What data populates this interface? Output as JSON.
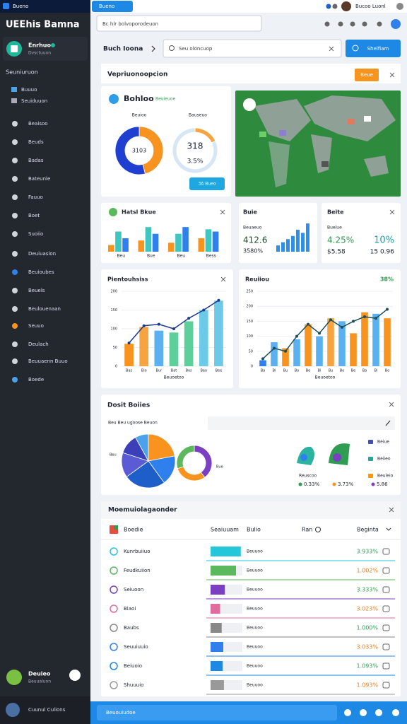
{
  "topbar": {
    "brand": "Bueno",
    "tab": "Bueno",
    "user": "Bucoo Luonl"
  },
  "sidebar": {
    "brand": "UEEhis Bamna",
    "profile": {
      "name": "Enrhuo",
      "role": "Dvsctuuon"
    },
    "section": "Seuniuruon",
    "subitems": [
      "Buuuo",
      "Seuiduuon"
    ],
    "items": [
      "Beaisoo",
      "Beuds",
      "Badas",
      "Bateunle",
      "Fauuo",
      "Boet",
      "Suoiio",
      "Deuiuaslon",
      "Beuioubes",
      "Beuels",
      "Beulouenaan",
      "Seuuo",
      "Deulach",
      "Beuuaenn Buuo",
      "Boede"
    ],
    "user": {
      "name": "Deuieo",
      "role": "Beuualuon"
    },
    "footer": "Cuunul Culions"
  },
  "header": {
    "search": "Bc hlr bolvoporodeuon"
  },
  "toolbar": {
    "crumb": "Buch Ioona",
    "search": "Seu oloncuop",
    "button": "Shelfiam"
  },
  "overview": {
    "title": "Vepriuonoopcion",
    "button": "Beue",
    "card": {
      "title": "Bohloo",
      "badge": "Beuieuoe",
      "donut_a": {
        "label": "Beuioo",
        "center": "3103",
        "values": [
          46,
          54
        ],
        "colors": [
          "#f7931e",
          "#1e3fd0"
        ]
      },
      "donut_b": {
        "label": "Bauseuo",
        "center": "318",
        "sub": "3.5%",
        "values": [
          18,
          82
        ],
        "colors": [
          "#f7a440",
          "#d6e6f5"
        ]
      },
      "button": "3A Bueo"
    }
  },
  "widgets": {
    "bars": {
      "title": "Hatsl Bkue",
      "categories": [
        "Beu",
        "Bue",
        "Beu",
        "Bess"
      ],
      "ylim": [
        0,
        60
      ],
      "series": [
        {
          "color": "#f7931e",
          "values": [
            15,
            25,
            20,
            30
          ]
        },
        {
          "color": "#3ec6c0",
          "values": [
            45,
            55,
            40,
            50
          ]
        },
        {
          "color": "#2f80ed",
          "values": [
            30,
            40,
            55,
            45
          ]
        }
      ]
    },
    "kpi1": {
      "title": "Buie",
      "label": "Beuaeuo",
      "value": "412.6",
      "sub": "3580%",
      "bars": [
        10,
        15,
        20,
        25,
        35,
        30,
        45
      ],
      "color": "#2f8fe8"
    },
    "kpi2": {
      "title": "Beite",
      "label": "Buelue",
      "v1": "4.25%",
      "v2": "10%",
      "v3": "$5.58",
      "v4": "15 0.96"
    }
  },
  "charts": [
    {
      "title": "Pientouhsiss",
      "xlabel": "Beuoetoo",
      "categories": [
        "Bas",
        "Bio",
        "Bur",
        "Bat",
        "Bos",
        "Beo",
        "Bee"
      ],
      "values": [
        60,
        105,
        95,
        90,
        120,
        150,
        175
      ],
      "colors": [
        "#f7931e",
        "#f7a440",
        "#5ab0f0",
        "#5ccf9a",
        "#5ccf9a",
        "#6cc9e8",
        "#6cc9e8"
      ],
      "line": [
        62,
        108,
        112,
        100,
        128,
        150,
        176
      ],
      "line_color": "#1b3a8a",
      "ylim": [
        0,
        200
      ],
      "yticks": [
        0,
        50,
        100,
        150,
        200
      ]
    },
    {
      "title": "Reuiiou",
      "badge": "38%",
      "xlabel": "Beuoetoo",
      "categories": [
        "Ba",
        "Bi",
        "Bu",
        "Bo",
        "Be",
        "Bi",
        "Bu",
        "Bo",
        "Be",
        "Ba",
        "Bi",
        "Bo"
      ],
      "values": [
        20,
        80,
        60,
        90,
        140,
        100,
        160,
        150,
        110,
        180,
        175,
        160
      ],
      "colors": [
        "#2f80ed",
        "#5ab0f0",
        "#f7931e",
        "#5ab0f0",
        "#f7931e",
        "#5ab0f0",
        "#f7a440",
        "#5ab0f0",
        "#f7931e",
        "#f7931e",
        "#5ab0f0",
        "#f7931e"
      ],
      "line": [
        25,
        60,
        50,
        100,
        140,
        110,
        155,
        130,
        150,
        165,
        160,
        190
      ],
      "line_color": "#1b4d5a",
      "ylim": [
        0,
        250
      ],
      "yticks": [
        0,
        50,
        100,
        150,
        200,
        250
      ]
    }
  ],
  "breakdown": {
    "title": "Dosit Boiies",
    "subtitle": "Beu Beu ugoose Beuon",
    "pie_label": "Beu",
    "ring_label": "Bue",
    "pie": [
      22,
      18,
      25,
      15,
      12,
      8
    ],
    "pie_colors": [
      "#f7931e",
      "#2f80ed",
      "#1e5ec8",
      "#5b5bd6",
      "#3b3fb8",
      "#4aa3e8"
    ],
    "ring": [
      40,
      30,
      30
    ],
    "ring_colors": [
      "#7b3fc4",
      "#f7931e",
      "#5cb85c"
    ],
    "legend": [
      {
        "label": "Beiue",
        "color": "#3f51b5"
      },
      {
        "label": "Beiieo",
        "color": "#26a69a"
      },
      {
        "label": "Beuleio",
        "color": "#ff9800"
      }
    ],
    "stats_label": "Reuscoo",
    "stats": [
      "0.33%",
      "3.73%",
      "5.86"
    ]
  },
  "table": {
    "title": "Moemuiolagaonder",
    "headers": [
      "Boedie",
      "Seaiuuam",
      "Bulio",
      "Ran",
      "Beginta"
    ],
    "rows": [
      {
        "name": "Kunrbuiiuo",
        "progress": 95,
        "status": "Beuuoo",
        "percent": "3.933%",
        "color": "#26c6da"
      },
      {
        "name": "Feudkuiion",
        "progress": 80,
        "status": "Beuuoo",
        "percent": "1.002%",
        "color": "#5cb85c"
      },
      {
        "name": "Seiuoon",
        "progress": 45,
        "status": "Beuuoo",
        "percent": "3.333%",
        "color": "#7b3fc4"
      },
      {
        "name": "Biaoi",
        "progress": 30,
        "status": "Beuuoo",
        "percent": "3.023%",
        "color": "#e06c9f"
      },
      {
        "name": "Baubs",
        "progress": 35,
        "status": "Beuuoo",
        "percent": "1.000%",
        "color": "#888888"
      },
      {
        "name": "Seuuiuuio",
        "progress": 40,
        "status": "Beuuoo",
        "percent": "3.033%",
        "color": "#2f80ed"
      },
      {
        "name": "Beiuoio",
        "progress": 38,
        "status": "Beuuoo",
        "percent": "1.093%",
        "color": "#1e88e5"
      },
      {
        "name": "Shuuuio",
        "progress": 42,
        "status": "Beuuoo",
        "percent": "1.093%",
        "color": "#999999"
      }
    ]
  },
  "footer": {
    "input": "Beuouiudoe"
  }
}
